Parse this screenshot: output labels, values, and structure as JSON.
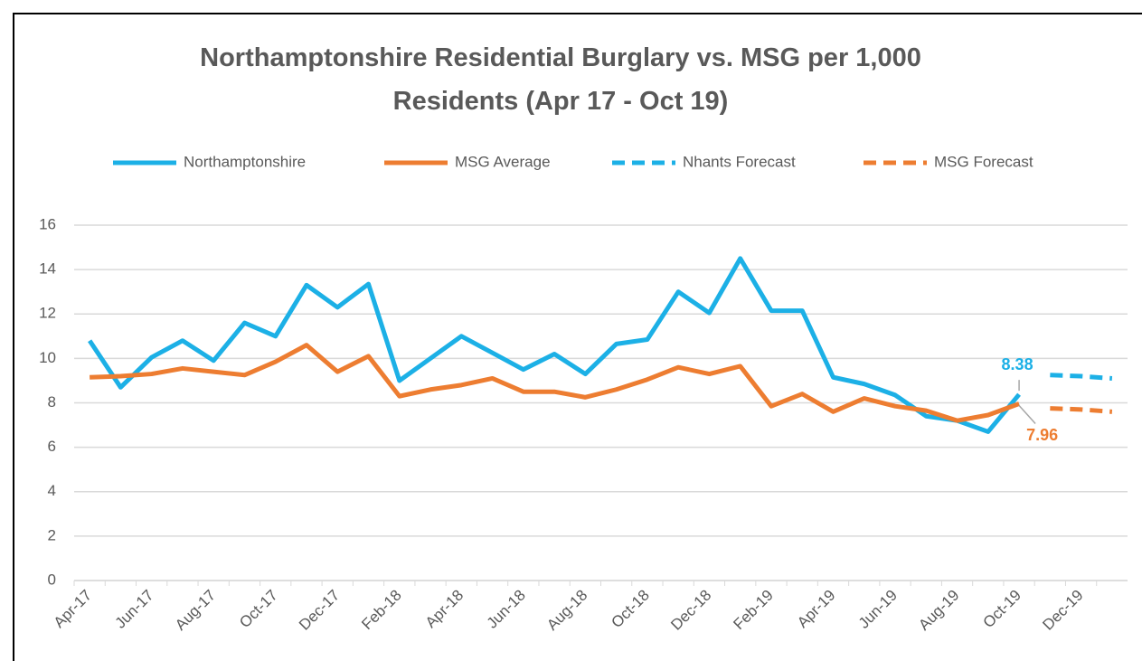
{
  "chart_data": {
    "type": "line",
    "title": "Northamptonshire Residential Burglary vs. MSG per 1,000 Residents (Apr 17 - Oct 19)",
    "categories": [
      "Apr-17",
      null,
      "Jun-17",
      null,
      "Aug-17",
      null,
      "Oct-17",
      null,
      "Dec-17",
      null,
      "Feb-18",
      null,
      "Apr-18",
      null,
      "Jun-18",
      null,
      "Aug-18",
      null,
      "Oct-18",
      null,
      "Dec-18",
      null,
      "Feb-19",
      null,
      "Apr-19",
      null,
      "Jun-19",
      null,
      "Aug-19",
      null,
      "Oct-19",
      null,
      "Dec-19",
      null
    ],
    "series": [
      {
        "name": "Northamptonshire",
        "color": "#1cb0e6",
        "dashed": false,
        "values": [
          10.8,
          8.7,
          10.05,
          10.8,
          9.9,
          11.6,
          11.0,
          13.3,
          12.3,
          13.35,
          9.0,
          10.0,
          11.0,
          10.25,
          9.5,
          10.2,
          9.3,
          10.65,
          10.85,
          13.0,
          12.05,
          14.5,
          12.15,
          12.15,
          9.15,
          8.85,
          8.35,
          7.4,
          7.2,
          6.7,
          8.38,
          null,
          null,
          null
        ]
      },
      {
        "name": "MSG Average",
        "color": "#ed7d31",
        "dashed": false,
        "values": [
          9.15,
          9.2,
          9.3,
          9.55,
          9.4,
          9.25,
          9.85,
          10.6,
          9.4,
          10.1,
          8.3,
          8.6,
          8.8,
          9.1,
          8.5,
          8.5,
          8.25,
          8.6,
          9.05,
          9.6,
          9.3,
          9.65,
          7.85,
          8.4,
          7.6,
          8.2,
          7.85,
          7.65,
          7.2,
          7.45,
          7.96,
          null,
          null,
          null
        ]
      },
      {
        "name": "Nhants Forecast",
        "color": "#1cb0e6",
        "dashed": true,
        "values": [
          null,
          null,
          null,
          null,
          null,
          null,
          null,
          null,
          null,
          null,
          null,
          null,
          null,
          null,
          null,
          null,
          null,
          null,
          null,
          null,
          null,
          null,
          null,
          null,
          null,
          null,
          null,
          null,
          null,
          null,
          null,
          9.25,
          9.2,
          9.1
        ]
      },
      {
        "name": "MSG Forecast",
        "color": "#ed7d31",
        "dashed": true,
        "values": [
          null,
          null,
          null,
          null,
          null,
          null,
          null,
          null,
          null,
          null,
          null,
          null,
          null,
          null,
          null,
          null,
          null,
          null,
          null,
          null,
          null,
          null,
          null,
          null,
          null,
          null,
          null,
          null,
          null,
          null,
          null,
          7.75,
          7.7,
          7.6
        ]
      }
    ],
    "ylim": [
      0,
      16
    ],
    "yticks": [
      0,
      2,
      4,
      6,
      8,
      10,
      12,
      14,
      16
    ],
    "grid": true,
    "legend": "top"
  }
}
